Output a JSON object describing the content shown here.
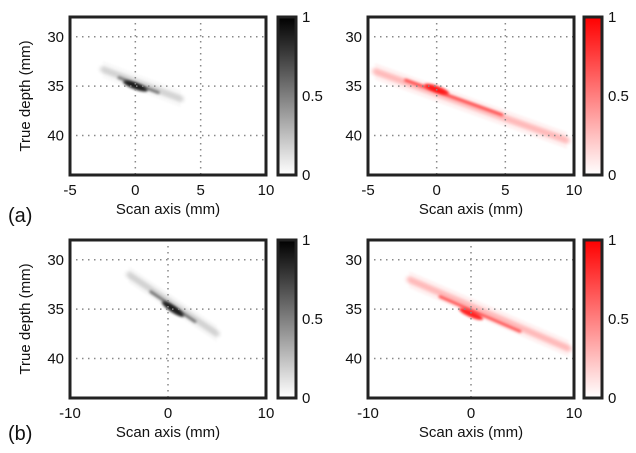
{
  "figure": {
    "row_labels": [
      "(a)",
      "(b)"
    ],
    "colors": {
      "gray_colormap_max": "#000000",
      "red_colormap_max": "#ff0000",
      "grid": "#888888",
      "frame": "#222222"
    }
  },
  "chart_data": [
    {
      "type": "heatmap",
      "row": "(a)",
      "colormap": "white-to-black",
      "xlabel": "Scan axis (mm)",
      "ylabel": "True depth (mm)",
      "xlim": [
        -5,
        10
      ],
      "ylim": [
        28,
        44
      ],
      "y_inverted": true,
      "xticks": [
        -5,
        0,
        5,
        10
      ],
      "yticks": [
        30,
        35,
        40
      ],
      "colorbar": {
        "ticks": [
          0,
          0.5,
          1
        ],
        "range": [
          0,
          1
        ]
      },
      "grid": true,
      "feature": {
        "peak_x": 0,
        "peak_y": 35,
        "peak_value": 1,
        "streak_from": [
          -2.5,
          33.3
        ],
        "streak_to": [
          3.5,
          36.3
        ]
      }
    },
    {
      "type": "heatmap",
      "row": "(a)",
      "colormap": "white-to-red",
      "xlabel": "Scan axis (mm)",
      "ylabel": "",
      "xlim": [
        -5,
        10
      ],
      "ylim": [
        28,
        44
      ],
      "y_inverted": true,
      "xticks": [
        -5,
        0,
        5,
        10
      ],
      "yticks": [
        30,
        35,
        40
      ],
      "colorbar": {
        "ticks": [
          0,
          0.5,
          1
        ],
        "range": [
          0,
          1
        ]
      },
      "grid": true,
      "feature": {
        "peak_x": 0,
        "peak_y": 35.3,
        "peak_value": 1,
        "streak_from": [
          -4.5,
          33.5
        ],
        "streak_to": [
          9.5,
          40.5
        ]
      }
    },
    {
      "type": "heatmap",
      "row": "(b)",
      "colormap": "white-to-black",
      "xlabel": "Scan axis (mm)",
      "ylabel": "True depth (mm)",
      "xlim": [
        -10,
        10
      ],
      "ylim": [
        28,
        44
      ],
      "y_inverted": true,
      "xticks": [
        -10,
        0,
        10
      ],
      "yticks": [
        30,
        35,
        40
      ],
      "colorbar": {
        "ticks": [
          0,
          0.5,
          1
        ],
        "range": [
          0,
          1
        ]
      },
      "grid": true,
      "feature": {
        "peak_x": 0.5,
        "peak_y": 35,
        "peak_value": 1,
        "streak_from": [
          -4,
          31.5
        ],
        "streak_to": [
          5,
          37.5
        ]
      }
    },
    {
      "type": "heatmap",
      "row": "(b)",
      "colormap": "white-to-red",
      "xlabel": "Scan axis (mm)",
      "ylabel": "",
      "xlim": [
        -10,
        10
      ],
      "ylim": [
        28,
        44
      ],
      "y_inverted": true,
      "xticks": [
        -10,
        0,
        10
      ],
      "yticks": [
        30,
        35,
        40
      ],
      "colorbar": {
        "ticks": [
          0,
          0.5,
          1
        ],
        "range": [
          0,
          1
        ]
      },
      "grid": true,
      "feature": {
        "peak_x": 0,
        "peak_y": 35.5,
        "peak_value": 1,
        "streak_from": [
          -6,
          32
        ],
        "streak_to": [
          9.5,
          39
        ]
      }
    }
  ]
}
